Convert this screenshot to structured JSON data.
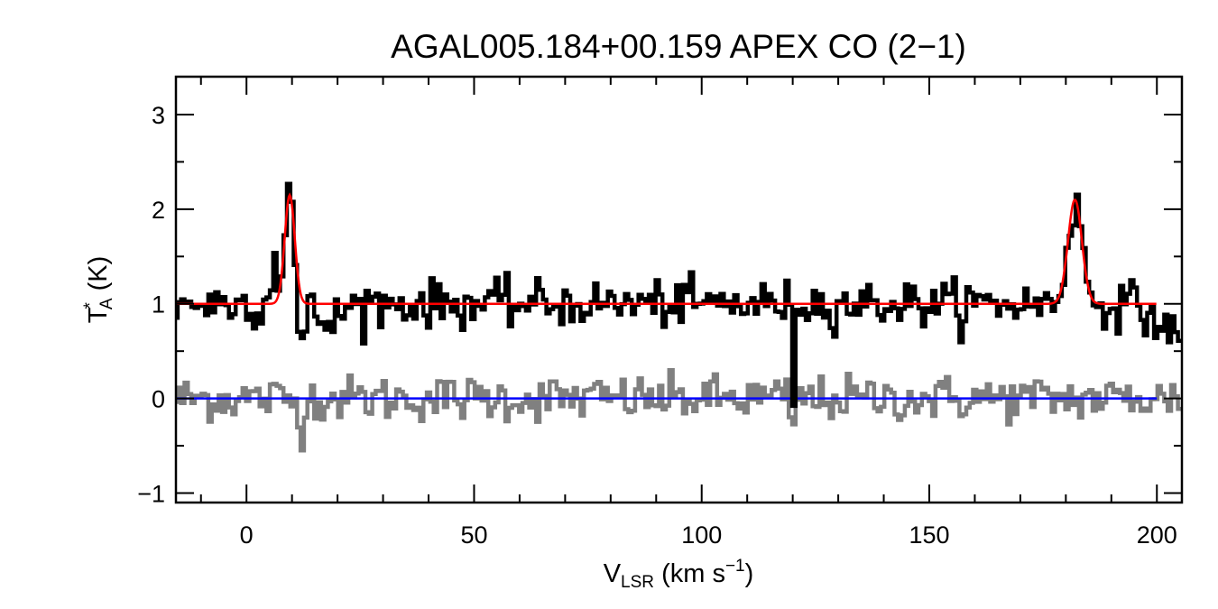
{
  "chart_data": {
    "type": "line",
    "title": "AGAL005.184+00.159  APEX CO (2−1)",
    "xlabel": {
      "main": "V",
      "sub": "LSR",
      "rest": " (km s",
      "sup": "−1",
      "end": ")"
    },
    "ylabel": {
      "main": "T",
      "sup": "*",
      "sub": "A",
      "rest": " (K)"
    },
    "xlim": [
      -15.5,
      205.5
    ],
    "ylim": [
      -1.1,
      3.4
    ],
    "xticks": [
      0,
      50,
      100,
      150,
      200
    ],
    "xtick_labels": [
      "0",
      "50",
      "100",
      "150",
      "200"
    ],
    "x_minor_step": 10,
    "yticks": [
      -1,
      0,
      1,
      2,
      3
    ],
    "ytick_labels": [
      "−1",
      "0",
      "1",
      "2",
      "3"
    ],
    "y_minor_step": 0.5,
    "grid": false,
    "channel_width_kms": 0.75,
    "series": [
      {
        "role": "spectrum",
        "color": "#000000",
        "offset": 1.0,
        "noise_rms": 0.12,
        "x_range": [
          -15.5,
          205.5
        ],
        "features": [
          {
            "center": 9.5,
            "amplitude": 1.25,
            "fwhm": 2.8
          },
          {
            "center": 6.0,
            "amplitude": 0.6,
            "fwhm": 1.0
          },
          {
            "center": 11.8,
            "amplitude": -0.65,
            "fwhm": 2.0
          },
          {
            "center": 18.0,
            "amplitude": -0.2,
            "fwhm": 6.0
          },
          {
            "center": 120.0,
            "amplitude": -1.5,
            "fwhm": 0.6
          },
          {
            "center": 182.0,
            "amplitude": 1.05,
            "fwhm": 3.8
          },
          {
            "center": 203.0,
            "amplitude": -0.3,
            "fwhm": 8.0
          }
        ]
      },
      {
        "role": "fit",
        "color": "#ff0000",
        "offset": 1.0,
        "x_range": [
          -15.5,
          200
        ],
        "gaussians": [
          {
            "center": 9.5,
            "amplitude": 1.15,
            "fwhm": 2.6
          },
          {
            "center": 182.0,
            "amplitude": 1.1,
            "fwhm": 3.6
          }
        ]
      },
      {
        "role": "residual",
        "color": "#808080",
        "offset": 0.0,
        "noise_rms": 0.12,
        "x_range": [
          -15.5,
          205.5
        ],
        "features": [
          {
            "center": 120.0,
            "amplitude": -0.6,
            "fwhm": 0.6
          },
          {
            "center": 11.8,
            "amplitude": -0.3,
            "fwhm": 1.5
          }
        ]
      },
      {
        "role": "zero-baseline",
        "color": "#0000ff",
        "value": 0.0,
        "x_range": [
          -15.5,
          200
        ]
      }
    ]
  }
}
